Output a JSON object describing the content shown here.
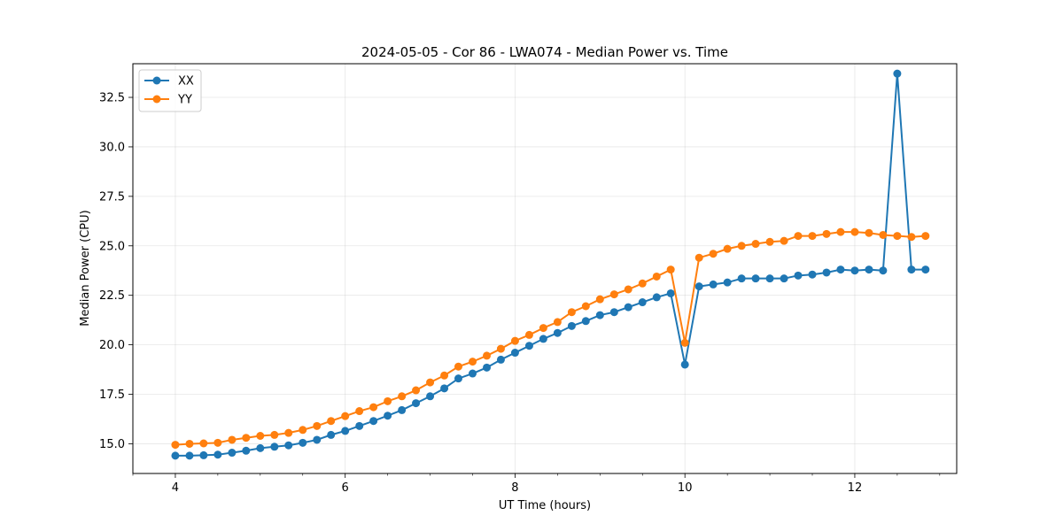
{
  "chart_data": {
    "type": "line",
    "title": "2024-05-05 - Cor 86 - LWA074 - Median Power vs. Time",
    "xlabel": "UT Time (hours)",
    "ylabel": "Median Power (CPU)",
    "xlim": [
      3.5,
      13.2
    ],
    "ylim": [
      13.5,
      34.2
    ],
    "xticks": [
      4,
      6,
      8,
      10,
      12
    ],
    "xtick_labels": [
      "4",
      "6",
      "8",
      "10",
      "12"
    ],
    "yticks": [
      15.0,
      17.5,
      20.0,
      22.5,
      25.0,
      27.5,
      30.0,
      32.5
    ],
    "ytick_labels": [
      "15.0",
      "17.5",
      "20.0",
      "22.5",
      "25.0",
      "27.5",
      "30.0",
      "32.5"
    ],
    "grid": true,
    "legend_position": "top-left",
    "x": [
      4.0,
      4.167,
      4.333,
      4.5,
      4.667,
      4.833,
      5.0,
      5.167,
      5.333,
      5.5,
      5.667,
      5.833,
      6.0,
      6.167,
      6.333,
      6.5,
      6.667,
      6.833,
      7.0,
      7.167,
      7.333,
      7.5,
      7.667,
      7.833,
      8.0,
      8.167,
      8.333,
      8.5,
      8.667,
      8.833,
      9.0,
      9.167,
      9.333,
      9.5,
      9.667,
      9.833,
      10.0,
      10.167,
      10.333,
      10.5,
      10.667,
      10.833,
      11.0,
      11.167,
      11.333,
      11.5,
      11.667,
      11.833,
      12.0,
      12.167,
      12.333,
      12.5,
      12.667,
      12.833
    ],
    "series": [
      {
        "name": "XX",
        "color": "#1f77b4",
        "values": [
          14.4,
          14.4,
          14.42,
          14.45,
          14.55,
          14.65,
          14.78,
          14.85,
          14.92,
          15.05,
          15.2,
          15.45,
          15.65,
          15.9,
          16.15,
          16.42,
          16.7,
          17.05,
          17.4,
          17.8,
          18.3,
          18.55,
          18.85,
          19.25,
          19.6,
          19.95,
          20.3,
          20.6,
          20.95,
          21.2,
          21.5,
          21.65,
          21.9,
          22.15,
          22.4,
          22.6,
          19.0,
          22.95,
          23.05,
          23.15,
          23.35,
          23.35,
          23.35,
          23.35,
          23.5,
          23.55,
          23.65,
          23.8,
          23.75,
          23.8,
          23.75,
          33.7,
          23.8,
          23.8
        ]
      },
      {
        "name": "YY",
        "color": "#ff7f0e",
        "values": [
          14.95,
          15.0,
          15.02,
          15.05,
          15.2,
          15.3,
          15.4,
          15.45,
          15.55,
          15.7,
          15.9,
          16.15,
          16.4,
          16.65,
          16.85,
          17.15,
          17.4,
          17.7,
          18.1,
          18.45,
          18.9,
          19.15,
          19.45,
          19.8,
          20.2,
          20.5,
          20.85,
          21.15,
          21.65,
          21.95,
          22.3,
          22.55,
          22.8,
          23.1,
          23.45,
          23.8,
          20.1,
          24.4,
          24.6,
          24.85,
          25.0,
          25.1,
          25.2,
          25.25,
          25.5,
          25.5,
          25.6,
          25.7,
          25.7,
          25.65,
          25.55,
          25.5,
          25.45,
          25.5
        ]
      }
    ]
  }
}
